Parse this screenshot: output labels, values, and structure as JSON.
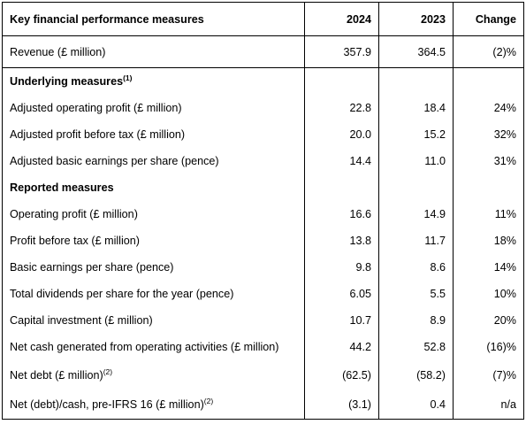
{
  "table": {
    "headers": [
      "Key financial performance measures",
      "2024",
      "2023",
      "Change"
    ],
    "rows": [
      {
        "label": "Revenue (£ million)",
        "sup": "",
        "v2024": "357.9",
        "v2023": "364.5",
        "change": "(2)%",
        "kind": "data"
      },
      {
        "label": "Underlying measures",
        "sup": "(1)",
        "v2024": "",
        "v2023": "",
        "change": "",
        "kind": "section"
      },
      {
        "label": "Adjusted operating profit (£ million)",
        "sup": "",
        "v2024": "22.8",
        "v2023": "18.4",
        "change": "24%",
        "kind": "data"
      },
      {
        "label": "Adjusted profit before tax (£ million)",
        "sup": "",
        "v2024": "20.0",
        "v2023": "15.2",
        "change": "32%",
        "kind": "data"
      },
      {
        "label": "Adjusted basic earnings per share (pence)",
        "sup": "",
        "v2024": "14.4",
        "v2023": "11.0",
        "change": "31%",
        "kind": "data"
      },
      {
        "label": "Reported measures",
        "sup": "",
        "v2024": "",
        "v2023": "",
        "change": "",
        "kind": "section"
      },
      {
        "label": "Operating profit (£ million)",
        "sup": "",
        "v2024": "16.6",
        "v2023": "14.9",
        "change": "11%",
        "kind": "data"
      },
      {
        "label": "Profit before tax (£ million)",
        "sup": "",
        "v2024": "13.8",
        "v2023": "11.7",
        "change": "18%",
        "kind": "data"
      },
      {
        "label": "Basic earnings per share (pence)",
        "sup": "",
        "v2024": "9.8",
        "v2023": "8.6",
        "change": "14%",
        "kind": "data"
      },
      {
        "label": "Total dividends per share for the year (pence)",
        "sup": "",
        "v2024": "6.05",
        "v2023": "5.5",
        "change": "10%",
        "kind": "data"
      },
      {
        "label": "Capital investment (£ million)",
        "sup": "",
        "v2024": "10.7",
        "v2023": "8.9",
        "change": "20%",
        "kind": "data"
      },
      {
        "label": "Net cash generated from operating activities (£ million)",
        "sup": "",
        "v2024": "44.2",
        "v2023": "52.8",
        "change": "(16)%",
        "kind": "data"
      },
      {
        "label": "Net debt (£ million)",
        "sup": "(2)",
        "v2024": "(62.5)",
        "v2023": "(58.2)",
        "change": "(7)%",
        "kind": "data"
      },
      {
        "label": "Net (debt)/cash, pre-IFRS 16 (£ million)",
        "sup": "(2)",
        "v2024": "(3.1)",
        "v2023": "0.4",
        "change": "n/a",
        "kind": "data"
      }
    ]
  }
}
